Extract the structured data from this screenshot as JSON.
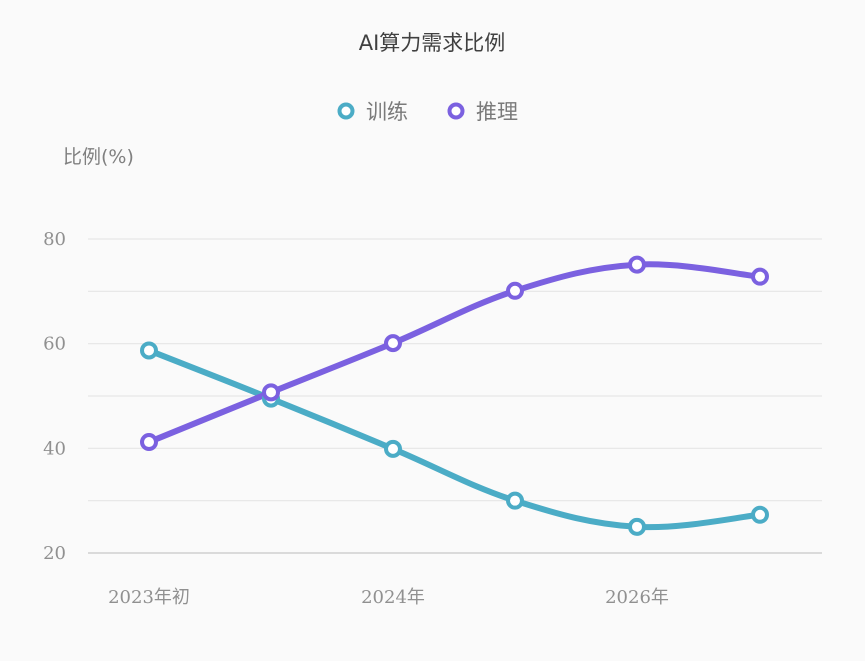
{
  "chart_data": {
    "type": "line",
    "title": "AI算力需求比例",
    "ylabel": "比例(%)",
    "xlabel": "",
    "ylim": [
      20,
      80
    ],
    "yticks": [
      20,
      40,
      60,
      80
    ],
    "grid": true,
    "legend_position": "top-center",
    "x": [
      "2023年初",
      "",
      "2024年",
      "",
      "2026年",
      ""
    ],
    "xtick_labels": [
      "2023年初",
      "2024年",
      "2026年"
    ],
    "series": [
      {
        "name": "训练",
        "color": "#4bacc6",
        "values": [
          58.7,
          49.5,
          39.9,
          30.0,
          25.0,
          27.3
        ]
      },
      {
        "name": "推理",
        "color": "#7b61e0",
        "values": [
          41.2,
          50.7,
          60.1,
          70.1,
          75.1,
          72.8
        ]
      }
    ]
  }
}
